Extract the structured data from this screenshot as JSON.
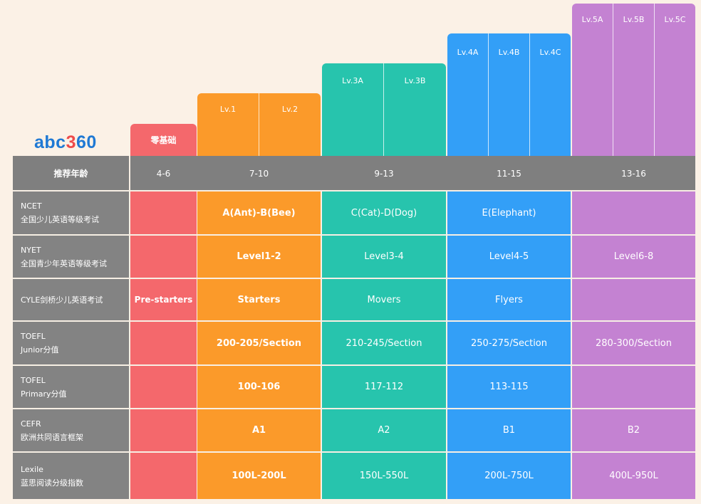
{
  "logo": {
    "prefix": "abc",
    "accent": "3",
    "suffix": "60"
  },
  "zero_level": "零基础",
  "level_groups": [
    {
      "color": "#f4686c",
      "levels": []
    },
    {
      "color": "#fb9a2a",
      "levels": [
        "Lv.1",
        "Lv.2"
      ]
    },
    {
      "color": "#27c4ad",
      "levels": [
        "Lv.3A",
        "Lv.3B"
      ]
    },
    {
      "color": "#339ff7",
      "levels": [
        "Lv.4A",
        "Lv.4B",
        "Lv.4C"
      ]
    },
    {
      "color": "#c482d2",
      "levels": [
        "Lv.5A",
        "Lv.5B",
        "Lv.5C"
      ]
    }
  ],
  "header": {
    "label": "推荐年龄",
    "ages": [
      "4-6",
      "7-10",
      "9-13",
      "11-15",
      "13-16"
    ]
  },
  "rows": [
    {
      "label": [
        "NCET",
        "全国少儿英语等级考试"
      ],
      "cells": [
        "",
        "A(Ant)-B(Bee)",
        "C(Cat)-D(Dog)",
        "E(Elephant)",
        ""
      ]
    },
    {
      "label": [
        "NYET",
        "全国青少年英语等级考试"
      ],
      "cells": [
        "",
        "Level1-2",
        "Level3-4",
        "Level4-5",
        "Level6-8"
      ]
    },
    {
      "label": [
        "CYLE剑桥少儿英语考试"
      ],
      "cells": [
        "Pre-starters",
        "Starters",
        "Movers",
        "Flyers",
        ""
      ]
    },
    {
      "label": [
        "TOEFL",
        "Junior分值"
      ],
      "cells": [
        "",
        "200-205/Section",
        "210-245/Section",
        "250-275/Section",
        "280-300/Section"
      ]
    },
    {
      "label": [
        "TOFEL",
        "Primary分值"
      ],
      "cells": [
        "",
        "100-106",
        "117-112",
        "113-115",
        ""
      ]
    },
    {
      "label": [
        "CEFR",
        "欧洲共同语言框架"
      ],
      "cells": [
        "",
        "A1",
        "A2",
        "B1",
        "B2"
      ]
    },
    {
      "label": [
        "Lexile",
        "蓝思阅读分级指数"
      ],
      "cells": [
        "",
        "100L-200L",
        "150L-550L",
        "200L-750L",
        "400L-950L"
      ]
    }
  ]
}
